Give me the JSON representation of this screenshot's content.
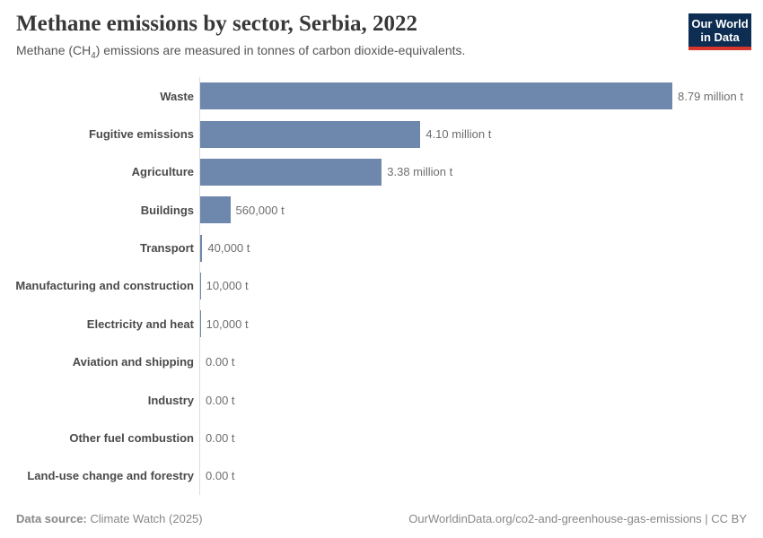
{
  "header": {
    "title": "Methane emissions by sector, Serbia, 2022",
    "subtitle_prefix": "Methane (CH",
    "subtitle_sub": "4",
    "subtitle_suffix": ") emissions are measured in tonnes of carbon dioxide-equivalents.",
    "logo_line1": "Our World",
    "logo_line2": "in Data"
  },
  "chart_data": {
    "type": "bar",
    "orientation": "horizontal",
    "title": "Methane emissions by sector, Serbia, 2022",
    "xlabel": "",
    "ylabel": "",
    "xlim": [
      0,
      8790000
    ],
    "grid": false,
    "legend": false,
    "categories": [
      "Waste",
      "Fugitive emissions",
      "Agriculture",
      "Buildings",
      "Transport",
      "Manufacturing and construction",
      "Electricity and heat",
      "Aviation and shipping",
      "Industry",
      "Other fuel combustion",
      "Land-use change and forestry"
    ],
    "values": [
      8790000,
      4100000,
      3380000,
      560000,
      40000,
      10000,
      10000,
      0,
      0,
      0,
      0
    ],
    "value_labels": [
      "8.79 million t",
      "4.10 million t",
      "3.38 million t",
      "560,000 t",
      "40,000 t",
      "10,000 t",
      "10,000 t",
      "0.00 t",
      "0.00 t",
      "0.00 t",
      "0.00 t"
    ]
  },
  "colors": {
    "bar": "#6e87ad",
    "axis": "#dcdcdc",
    "logo_bg": "#0d2d52",
    "logo_accent": "#d7362c"
  },
  "footer": {
    "source_label": "Data source:",
    "source_value": "Climate Watch (2025)",
    "credit": "OurWorldinData.org/co2-and-greenhouse-gas-emissions | CC BY"
  }
}
